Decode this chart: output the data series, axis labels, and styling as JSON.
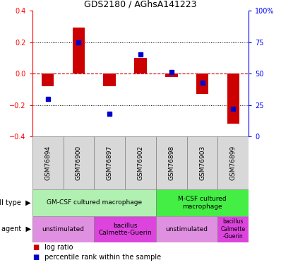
{
  "title": "GDS2180 / AGhsA141223",
  "samples": [
    "GSM76894",
    "GSM76900",
    "GSM76897",
    "GSM76902",
    "GSM76898",
    "GSM76903",
    "GSM76899"
  ],
  "log_ratios": [
    -0.08,
    0.29,
    -0.08,
    0.1,
    -0.02,
    -0.13,
    -0.32
  ],
  "percentile_ranks": [
    30,
    75,
    18,
    65,
    51,
    43,
    22
  ],
  "ylim_left": [
    -0.4,
    0.4
  ],
  "ylim_right": [
    0,
    100
  ],
  "yticks_left": [
    -0.4,
    -0.2,
    0.0,
    0.2,
    0.4
  ],
  "yticks_right": [
    0,
    25,
    50,
    75,
    100
  ],
  "bar_color": "#cc0000",
  "dot_color": "#0000cc",
  "hline_color": "#cc0000",
  "cell_type_row": [
    {
      "label": "GM-CSF cultured macrophage",
      "start": 0,
      "end": 4,
      "color": "#b0f0b0"
    },
    {
      "label": "M-CSF cultured\nmacrophage",
      "start": 4,
      "end": 7,
      "color": "#44ee44"
    }
  ],
  "agent_row": [
    {
      "label": "unstimulated",
      "start": 0,
      "end": 2,
      "color": "#e090e0"
    },
    {
      "label": "bacillus\nCalmette-Guerin",
      "start": 2,
      "end": 4,
      "color": "#dd44dd"
    },
    {
      "label": "unstimulated",
      "start": 4,
      "end": 6,
      "color": "#e090e0"
    },
    {
      "label": "bacillus\nCalmette\n-Guerin",
      "start": 6,
      "end": 7,
      "color": "#dd44dd"
    }
  ],
  "legend_items": [
    {
      "label": " log ratio",
      "color": "#cc0000"
    },
    {
      "label": " percentile rank within the sample",
      "color": "#0000cc"
    }
  ]
}
